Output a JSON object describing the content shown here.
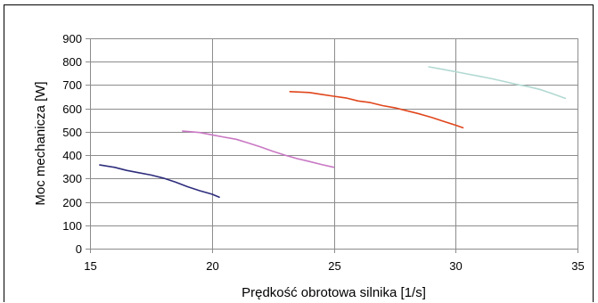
{
  "chart_data": {
    "type": "line",
    "title": "",
    "xlabel": "Prędkość obrotowa silnika [1/s]",
    "ylabel": "Moc  mechanicza [W]",
    "xlim": [
      15,
      35
    ],
    "ylim": [
      0,
      900
    ],
    "xticks": [
      15,
      20,
      25,
      30,
      35
    ],
    "yticks": [
      0,
      100,
      200,
      300,
      400,
      500,
      600,
      700,
      800,
      900
    ],
    "grid": "vertical-and-horizontal",
    "legend": "none",
    "series": [
      {
        "color": "#2e2d7c",
        "x": [
          15.4,
          16.0,
          16.5,
          17.0,
          17.5,
          18.0,
          18.5,
          19.0,
          19.5,
          20.0,
          20.3
        ],
        "y": [
          358,
          348,
          335,
          325,
          315,
          302,
          285,
          265,
          248,
          233,
          220
        ]
      },
      {
        "color": "#c978c4",
        "x": [
          18.8,
          19.5,
          20.0,
          20.5,
          21.0,
          21.5,
          22.0,
          22.5,
          23.0,
          23.5,
          24.0,
          24.5,
          25.0
        ],
        "y": [
          503,
          497,
          487,
          477,
          468,
          452,
          435,
          417,
          400,
          385,
          373,
          360,
          348
        ]
      },
      {
        "color": "#e0461c",
        "x": [
          23.2,
          24.0,
          24.5,
          25.0,
          25.5,
          26.0,
          26.5,
          27.0,
          27.5,
          28.0,
          28.5,
          29.0,
          29.5,
          30.0,
          30.3
        ],
        "y": [
          672,
          668,
          660,
          652,
          645,
          632,
          625,
          612,
          603,
          590,
          577,
          562,
          545,
          528,
          517
        ]
      },
      {
        "color": "#b2d9d2",
        "x": [
          28.9,
          29.5,
          30.0,
          30.5,
          31.0,
          31.5,
          32.0,
          32.5,
          33.0,
          33.5,
          34.0,
          34.5
        ],
        "y": [
          778,
          767,
          757,
          747,
          737,
          727,
          715,
          703,
          693,
          680,
          662,
          643
        ]
      }
    ]
  }
}
